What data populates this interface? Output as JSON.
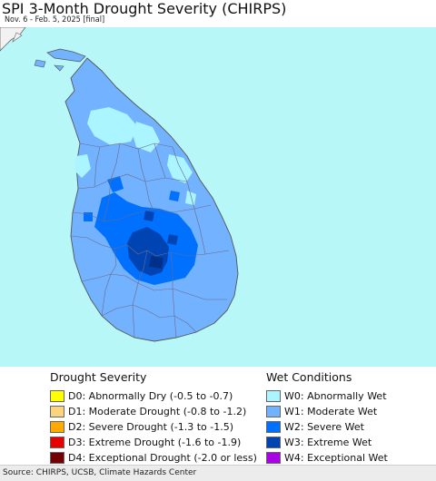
{
  "header": {
    "title": "SPI 3-Month Drought Severity (CHIRPS)",
    "subtitle": "Nov. 6 - Feb. 5, 2025 [final]"
  },
  "legend": {
    "drought": {
      "heading": "Drought Severity",
      "items": [
        {
          "label": "D0: Abnormally Dry (-0.5 to -0.7)",
          "color": "#ffff00"
        },
        {
          "label": "D1: Moderate Drought (-0.8 to -1.2)",
          "color": "#fcd37f"
        },
        {
          "label": "D2: Severe Drought (-1.3 to -1.5)",
          "color": "#ffaa00"
        },
        {
          "label": "D3: Extreme Drought (-1.6 to -1.9)",
          "color": "#e60000"
        },
        {
          "label": "D4: Exceptional Drought (-2.0 or less)",
          "color": "#730000"
        }
      ]
    },
    "wet": {
      "heading": "Wet Conditions",
      "items": [
        {
          "label": "W0: Abnormally Wet",
          "color": "#aaf5ff"
        },
        {
          "label": "W1: Moderate Wet",
          "color": "#73b2ff"
        },
        {
          "label": "W2: Severe Wet",
          "color": "#0070ff"
        },
        {
          "label": "W3: Extreme Wet",
          "color": "#0044b4"
        },
        {
          "label": "W4: Exceptional Wet",
          "color": "#a900e6"
        }
      ]
    }
  },
  "map_colors": {
    "water": "#b7f7f7",
    "land_mainland": "#f2f2f2",
    "boundary": "#666666"
  },
  "footer": {
    "source": "Source: CHIRPS, UCSB, Climate Hazards Center"
  }
}
